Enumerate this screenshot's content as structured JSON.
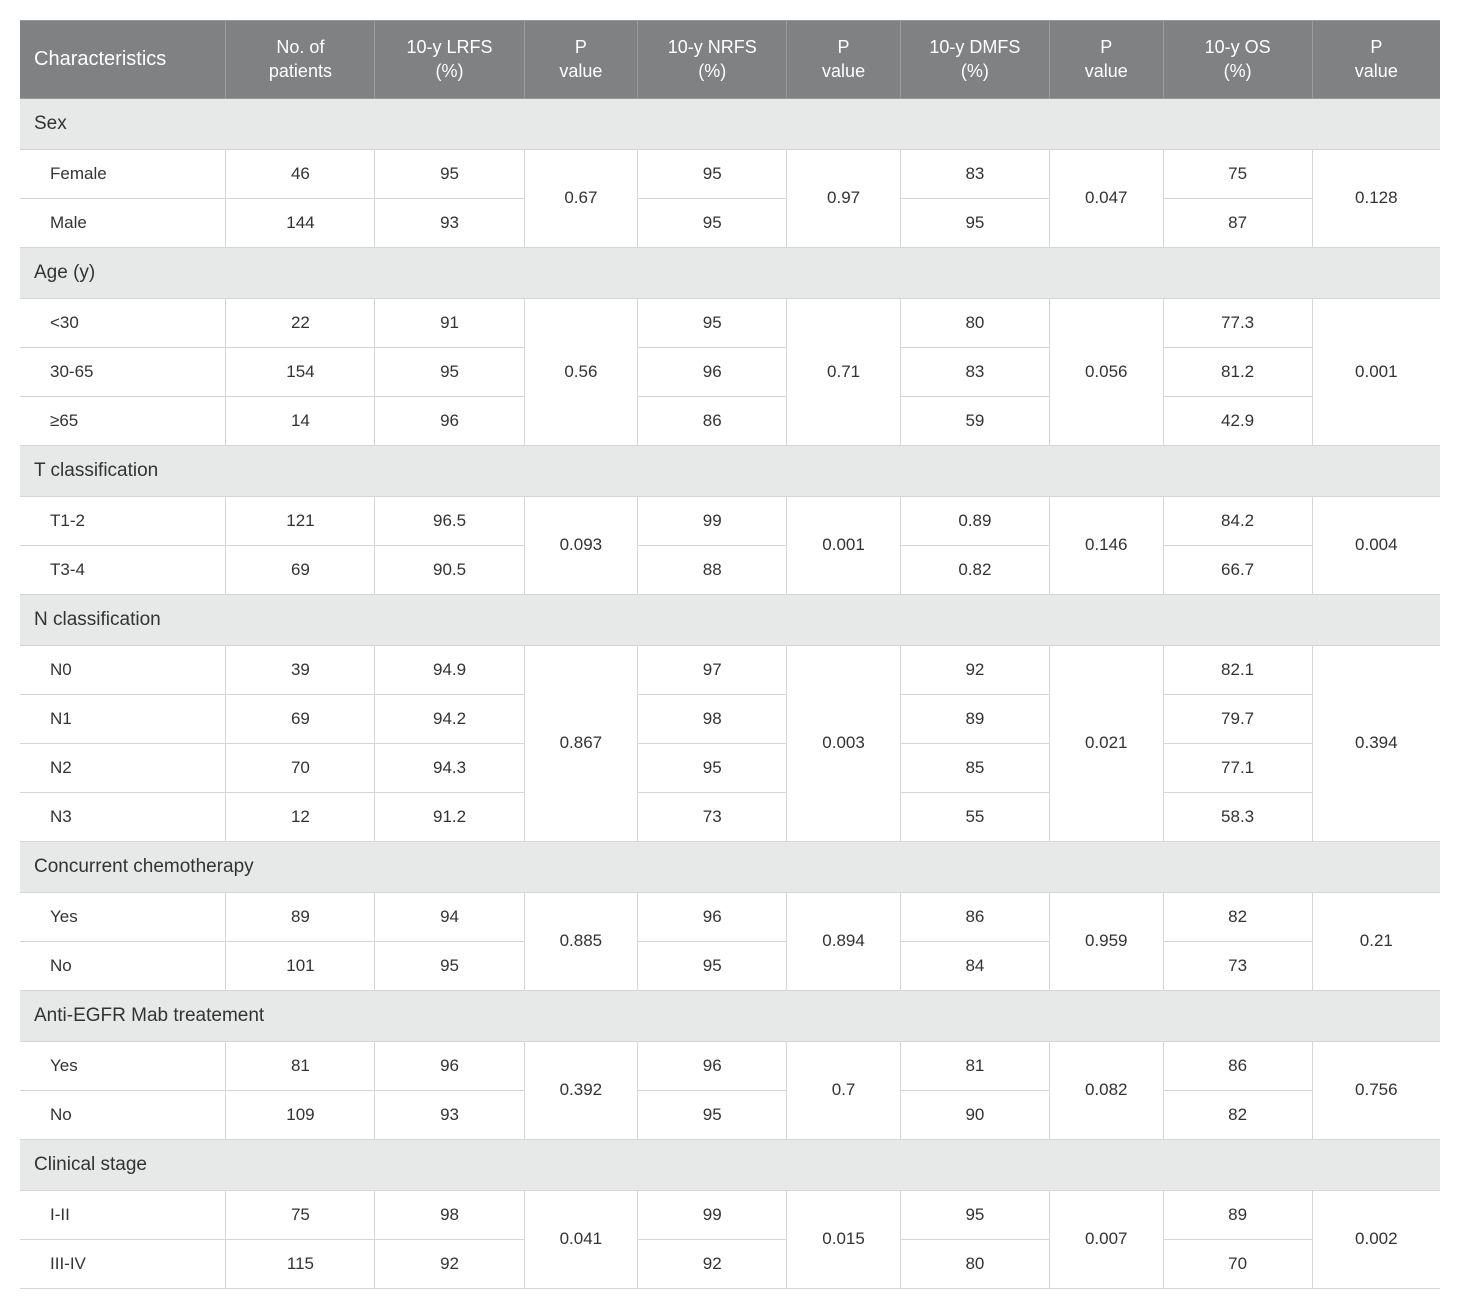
{
  "columns": {
    "characteristics": "Characteristics",
    "patients": "No. of\npatients",
    "lrfs": "10-y LRFS\n(%)",
    "p1": "P\nvalue",
    "nrfs": "10-y NRFS\n(%)",
    "p2": "P\nvalue",
    "dmfs": "10-y DMFS\n(%)",
    "p3": "P\nvalue",
    "os": "10-y OS\n(%)",
    "p4": "P\nvalue"
  },
  "col_widths": [
    "14.5%",
    "10.5%",
    "10.5%",
    "8%",
    "10.5%",
    "8%",
    "10.5%",
    "8%",
    "10.5%",
    "9%"
  ],
  "header_bg": "#7f8182",
  "header_fg": "#ffffff",
  "section_bg": "#e7e8e8",
  "border_color": "#d6d6d6",
  "sections": [
    {
      "title": "Sex",
      "rows": [
        {
          "label": "Female",
          "n": "46",
          "lrfs": "95",
          "nrfs": "95",
          "dmfs": "83",
          "os": "75"
        },
        {
          "label": "Male",
          "n": "144",
          "lrfs": "93",
          "nrfs": "95",
          "dmfs": "95",
          "os": "87"
        }
      ],
      "p": {
        "lrfs": "0.67",
        "nrfs": "0.97",
        "dmfs": "0.047",
        "os": "0.128"
      }
    },
    {
      "title": "Age (y)",
      "rows": [
        {
          "label": "<30",
          "n": "22",
          "lrfs": "91",
          "nrfs": "95",
          "dmfs": "80",
          "os": "77.3"
        },
        {
          "label": "30-65",
          "n": "154",
          "lrfs": "95",
          "nrfs": "96",
          "dmfs": "83",
          "os": "81.2"
        },
        {
          "label": "≥65",
          "n": "14",
          "lrfs": "96",
          "nrfs": "86",
          "dmfs": "59",
          "os": "42.9"
        }
      ],
      "p": {
        "lrfs": "0.56",
        "nrfs": "0.71",
        "dmfs": "0.056",
        "os": "0.001"
      }
    },
    {
      "title": "T classification",
      "rows": [
        {
          "label": "T1-2",
          "n": "121",
          "lrfs": "96.5",
          "nrfs": "99",
          "dmfs": "0.89",
          "os": "84.2"
        },
        {
          "label": "T3-4",
          "n": "69",
          "lrfs": "90.5",
          "nrfs": "88",
          "dmfs": "0.82",
          "os": "66.7"
        }
      ],
      "p": {
        "lrfs": "0.093",
        "nrfs": "0.001",
        "dmfs": "0.146",
        "os": "0.004"
      }
    },
    {
      "title": "N classification",
      "rows": [
        {
          "label": "N0",
          "n": "39",
          "lrfs": "94.9",
          "nrfs": "97",
          "dmfs": "92",
          "os": "82.1"
        },
        {
          "label": "N1",
          "n": "69",
          "lrfs": "94.2",
          "nrfs": "98",
          "dmfs": "89",
          "os": "79.7"
        },
        {
          "label": "N2",
          "n": "70",
          "lrfs": "94.3",
          "nrfs": "95",
          "dmfs": "85",
          "os": "77.1"
        },
        {
          "label": "N3",
          "n": "12",
          "lrfs": "91.2",
          "nrfs": "73",
          "dmfs": "55",
          "os": "58.3"
        }
      ],
      "p": {
        "lrfs": "0.867",
        "nrfs": "0.003",
        "dmfs": "0.021",
        "os": "0.394"
      }
    },
    {
      "title": "Concurrent chemotherapy",
      "rows": [
        {
          "label": "Yes",
          "n": "89",
          "lrfs": "94",
          "nrfs": "96",
          "dmfs": "86",
          "os": "82"
        },
        {
          "label": "No",
          "n": "101",
          "lrfs": "95",
          "nrfs": "95",
          "dmfs": "84",
          "os": "73"
        }
      ],
      "p": {
        "lrfs": "0.885",
        "nrfs": "0.894",
        "dmfs": "0.959",
        "os": "0.21"
      }
    },
    {
      "title": "Anti-EGFR Mab treatement",
      "rows": [
        {
          "label": "Yes",
          "n": "81",
          "lrfs": "96",
          "nrfs": "96",
          "dmfs": "81",
          "os": "86"
        },
        {
          "label": "No",
          "n": "109",
          "lrfs": "93",
          "nrfs": "95",
          "dmfs": "90",
          "os": "82"
        }
      ],
      "p": {
        "lrfs": "0.392",
        "nrfs": "0.7",
        "dmfs": "0.082",
        "os": "0.756"
      }
    },
    {
      "title": "Clinical stage",
      "rows": [
        {
          "label": "I-II",
          "n": "75",
          "lrfs": "98",
          "nrfs": "99",
          "dmfs": "95",
          "os": "89"
        },
        {
          "label": "III-IV",
          "n": "115",
          "lrfs": "92",
          "nrfs": "92",
          "dmfs": "80",
          "os": "70"
        }
      ],
      "p": {
        "lrfs": "0.041",
        "nrfs": "0.015",
        "dmfs": "0.007",
        "os": "0.002"
      }
    }
  ]
}
